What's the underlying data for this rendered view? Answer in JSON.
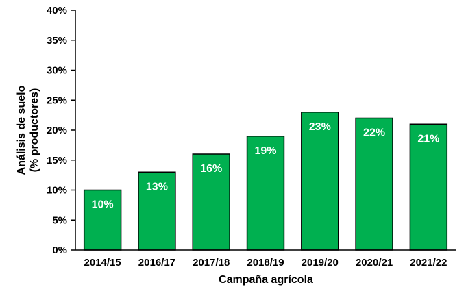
{
  "chart_data": {
    "type": "bar",
    "categories": [
      "2014/15",
      "2016/17",
      "2017/18",
      "2018/19",
      "2019/20",
      "2020/21",
      "2021/22"
    ],
    "values": [
      10,
      13,
      16,
      19,
      23,
      22,
      21
    ],
    "data_labels": [
      "10%",
      "13%",
      "16%",
      "19%",
      "23%",
      "22%",
      "21%"
    ],
    "title": "",
    "xlabel": "Campaña agrícola",
    "ylabel_lines": [
      "Análisis de suelo",
      "(% productores)"
    ],
    "ylim": [
      0,
      40
    ],
    "yticks": [
      0,
      5,
      10,
      15,
      20,
      25,
      30,
      35,
      40
    ],
    "ytick_labels": [
      "0%",
      "5%",
      "10%",
      "15%",
      "20%",
      "25%",
      "30%",
      "35%",
      "40%"
    ],
    "grid": false,
    "legend": "none",
    "bar_color": "#00b050",
    "bar_edge_color": "#000000"
  }
}
